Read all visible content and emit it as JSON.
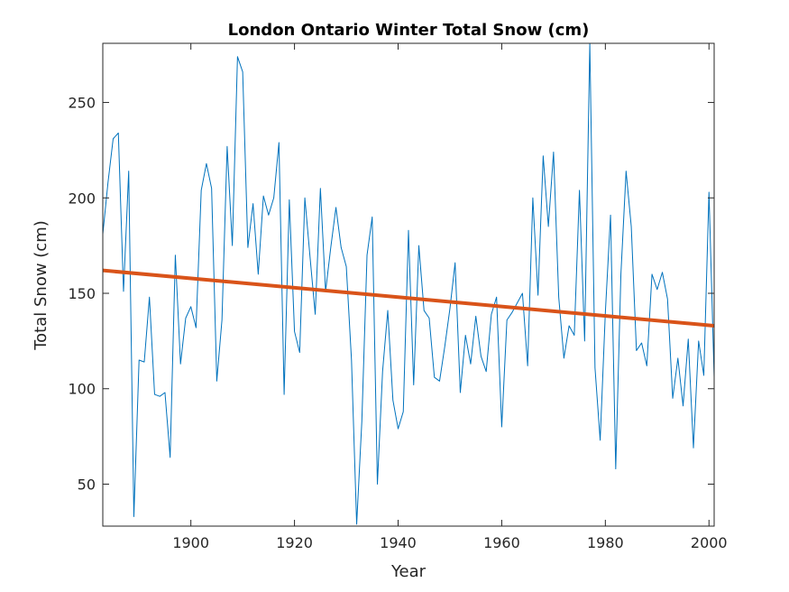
{
  "chart_data": {
    "type": "line",
    "title": "London Ontario Winter Total Snow (cm)",
    "xlabel": "Year",
    "ylabel": "Total Snow (cm)",
    "xlim": [
      1883,
      2001
    ],
    "ylim": [
      28,
      281
    ],
    "xticks": [
      1900,
      1920,
      1940,
      1960,
      1980,
      2000
    ],
    "yticks": [
      50,
      100,
      150,
      200,
      250
    ],
    "grid": false,
    "series": [
      {
        "color": "#0072BD",
        "x": [
          1883,
          1884,
          1885,
          1886,
          1887,
          1888,
          1889,
          1890,
          1891,
          1892,
          1893,
          1894,
          1895,
          1896,
          1897,
          1898,
          1899,
          1900,
          1901,
          1902,
          1903,
          1904,
          1905,
          1906,
          1907,
          1908,
          1909,
          1910,
          1911,
          1912,
          1913,
          1914,
          1915,
          1916,
          1917,
          1918,
          1919,
          1920,
          1921,
          1922,
          1923,
          1924,
          1925,
          1926,
          1927,
          1928,
          1929,
          1930,
          1931,
          1932,
          1933,
          1934,
          1935,
          1936,
          1937,
          1938,
          1939,
          1940,
          1941,
          1942,
          1943,
          1944,
          1945,
          1946,
          1947,
          1948,
          1949,
          1950,
          1951,
          1952,
          1953,
          1954,
          1955,
          1956,
          1957,
          1958,
          1959,
          1960,
          1961,
          1962,
          1963,
          1964,
          1965,
          1966,
          1967,
          1968,
          1969,
          1970,
          1971,
          1972,
          1973,
          1974,
          1975,
          1976,
          1977,
          1978,
          1979,
          1980,
          1981,
          1982,
          1983,
          1984,
          1985,
          1986,
          1987,
          1988,
          1989,
          1990,
          1991,
          1992,
          1993,
          1994,
          1995,
          1996,
          1997,
          1998,
          1999,
          2000,
          2001
        ],
        "values": [
          181,
          208,
          231,
          234,
          151,
          214,
          33,
          115,
          114,
          148,
          97,
          96,
          98,
          64,
          170,
          113,
          137,
          143,
          132,
          204,
          218,
          205,
          104,
          136,
          227,
          175,
          274,
          266,
          174,
          197,
          160,
          201,
          191,
          200,
          229,
          97,
          199,
          130,
          119,
          200,
          169,
          139,
          205,
          151,
          174,
          195,
          174,
          164,
          115,
          29,
          83,
          170,
          190,
          50,
          109,
          141,
          94,
          79,
          88,
          183,
          102,
          175,
          141,
          137,
          106,
          104,
          122,
          142,
          166,
          98,
          128,
          113,
          138,
          117,
          109,
          139,
          148,
          80,
          136,
          140,
          145,
          150,
          112,
          200,
          149,
          222,
          185,
          224,
          148,
          116,
          133,
          128,
          204,
          125,
          281,
          111,
          73,
          140,
          191,
          58,
          160,
          214,
          185,
          120,
          124,
          112,
          160,
          152,
          161,
          147,
          95,
          116,
          91,
          126,
          69,
          125,
          107,
          203,
          106
        ]
      },
      {
        "color": "#D95319",
        "x": [
          1883,
          2001
        ],
        "values": [
          162,
          133
        ]
      }
    ]
  }
}
